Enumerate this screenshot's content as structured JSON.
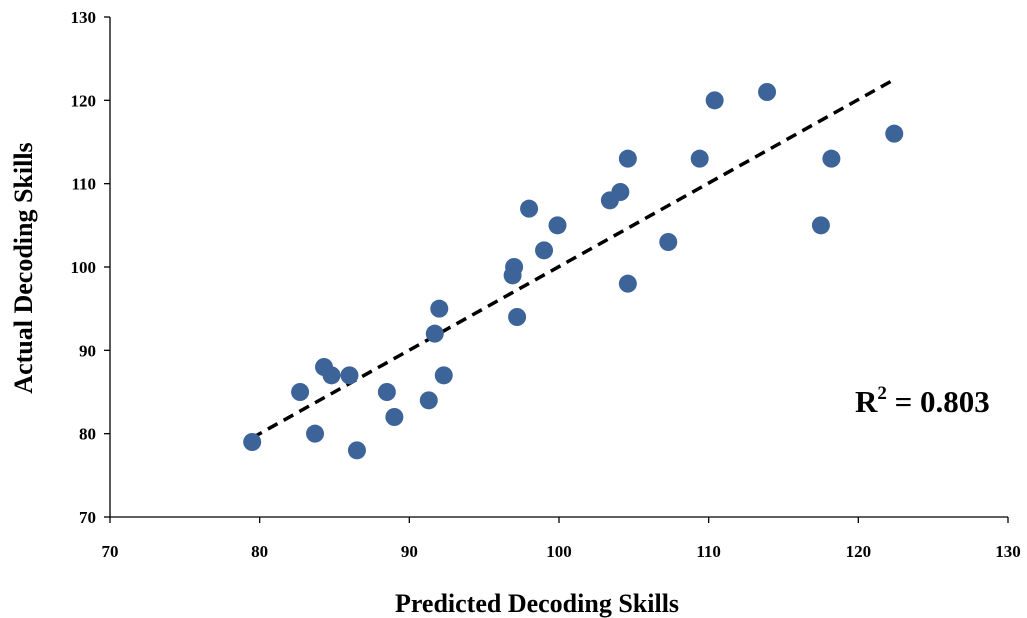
{
  "chart_data": {
    "type": "scatter",
    "title": "",
    "xlabel": "Predicted Decoding Skills",
    "ylabel": "Actual Decoding Skills",
    "xlim": [
      70,
      130
    ],
    "ylim": [
      70,
      130
    ],
    "xticks": [
      "70",
      "80",
      "90",
      "100",
      "110",
      "120",
      "130"
    ],
    "yticks": [
      "70",
      "80",
      "90",
      "100",
      "110",
      "120",
      "130"
    ],
    "grid": false,
    "legend": "none",
    "marker_color": "#3d6499",
    "series": [
      {
        "points": [
          {
            "x": 79.5,
            "y": 79
          },
          {
            "x": 82.7,
            "y": 85
          },
          {
            "x": 83.7,
            "y": 80
          },
          {
            "x": 84.3,
            "y": 88
          },
          {
            "x": 84.8,
            "y": 87
          },
          {
            "x": 86.0,
            "y": 87
          },
          {
            "x": 86.5,
            "y": 78
          },
          {
            "x": 88.5,
            "y": 85
          },
          {
            "x": 89.0,
            "y": 82
          },
          {
            "x": 91.3,
            "y": 84
          },
          {
            "x": 91.7,
            "y": 92
          },
          {
            "x": 92.0,
            "y": 95
          },
          {
            "x": 92.3,
            "y": 87
          },
          {
            "x": 96.9,
            "y": 99
          },
          {
            "x": 97.0,
            "y": 100
          },
          {
            "x": 97.2,
            "y": 94
          },
          {
            "x": 98.0,
            "y": 107
          },
          {
            "x": 99.0,
            "y": 102
          },
          {
            "x": 99.9,
            "y": 105
          },
          {
            "x": 103.4,
            "y": 108
          },
          {
            "x": 104.1,
            "y": 109
          },
          {
            "x": 104.6,
            "y": 113
          },
          {
            "x": 104.6,
            "y": 98
          },
          {
            "x": 107.3,
            "y": 103
          },
          {
            "x": 109.4,
            "y": 113
          },
          {
            "x": 110.4,
            "y": 120
          },
          {
            "x": 113.9,
            "y": 121
          },
          {
            "x": 117.5,
            "y": 105
          },
          {
            "x": 118.2,
            "y": 113
          },
          {
            "x": 122.4,
            "y": 116
          }
        ]
      }
    ],
    "trendline": {
      "style": "dashed",
      "color": "#000000",
      "x": [
        79.5,
        122.4
      ],
      "y": [
        79.5,
        122.5
      ]
    },
    "annotation": {
      "base": "R",
      "sup": "2",
      "rest": " = 0.803"
    }
  }
}
